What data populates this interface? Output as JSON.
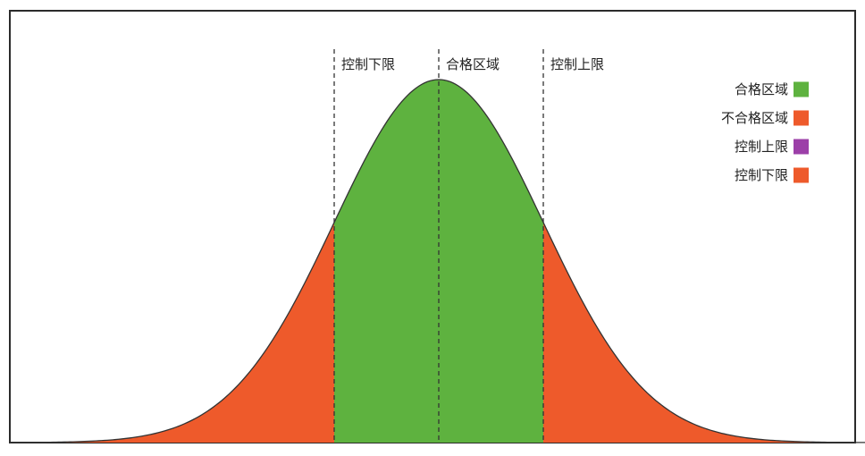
{
  "chart_data": {
    "type": "area",
    "title": "",
    "xlabel": "",
    "ylabel": "",
    "grid": false,
    "distribution": {
      "mean": 0,
      "std_dev": 1,
      "xlim": [
        -4.1,
        4.1
      ]
    },
    "control_lines": [
      {
        "label": "控制下限",
        "x": -1.0
      },
      {
        "label": "合格区域",
        "x": 0.0
      },
      {
        "label": "控制上限",
        "x": 1.0
      }
    ],
    "regions": [
      {
        "name": "不合格区域",
        "from": -4.1,
        "to": -1.0,
        "color": "#EE5A2B"
      },
      {
        "name": "合格区域",
        "from": -1.0,
        "to": 1.0,
        "color": "#5EB23F"
      },
      {
        "name": "不合格区域",
        "from": 1.0,
        "to": 4.1,
        "color": "#EE5A2B"
      }
    ],
    "legend": {
      "placement": "top-right",
      "entries": [
        {
          "label": "合格区域",
          "color": "#5EB23F"
        },
        {
          "label": "不合格区域",
          "color": "#EE5A2B"
        },
        {
          "label": "控制上限",
          "color": "#9C3FA8"
        },
        {
          "label": "控制下限",
          "color": "#EE5A2B"
        }
      ]
    }
  }
}
